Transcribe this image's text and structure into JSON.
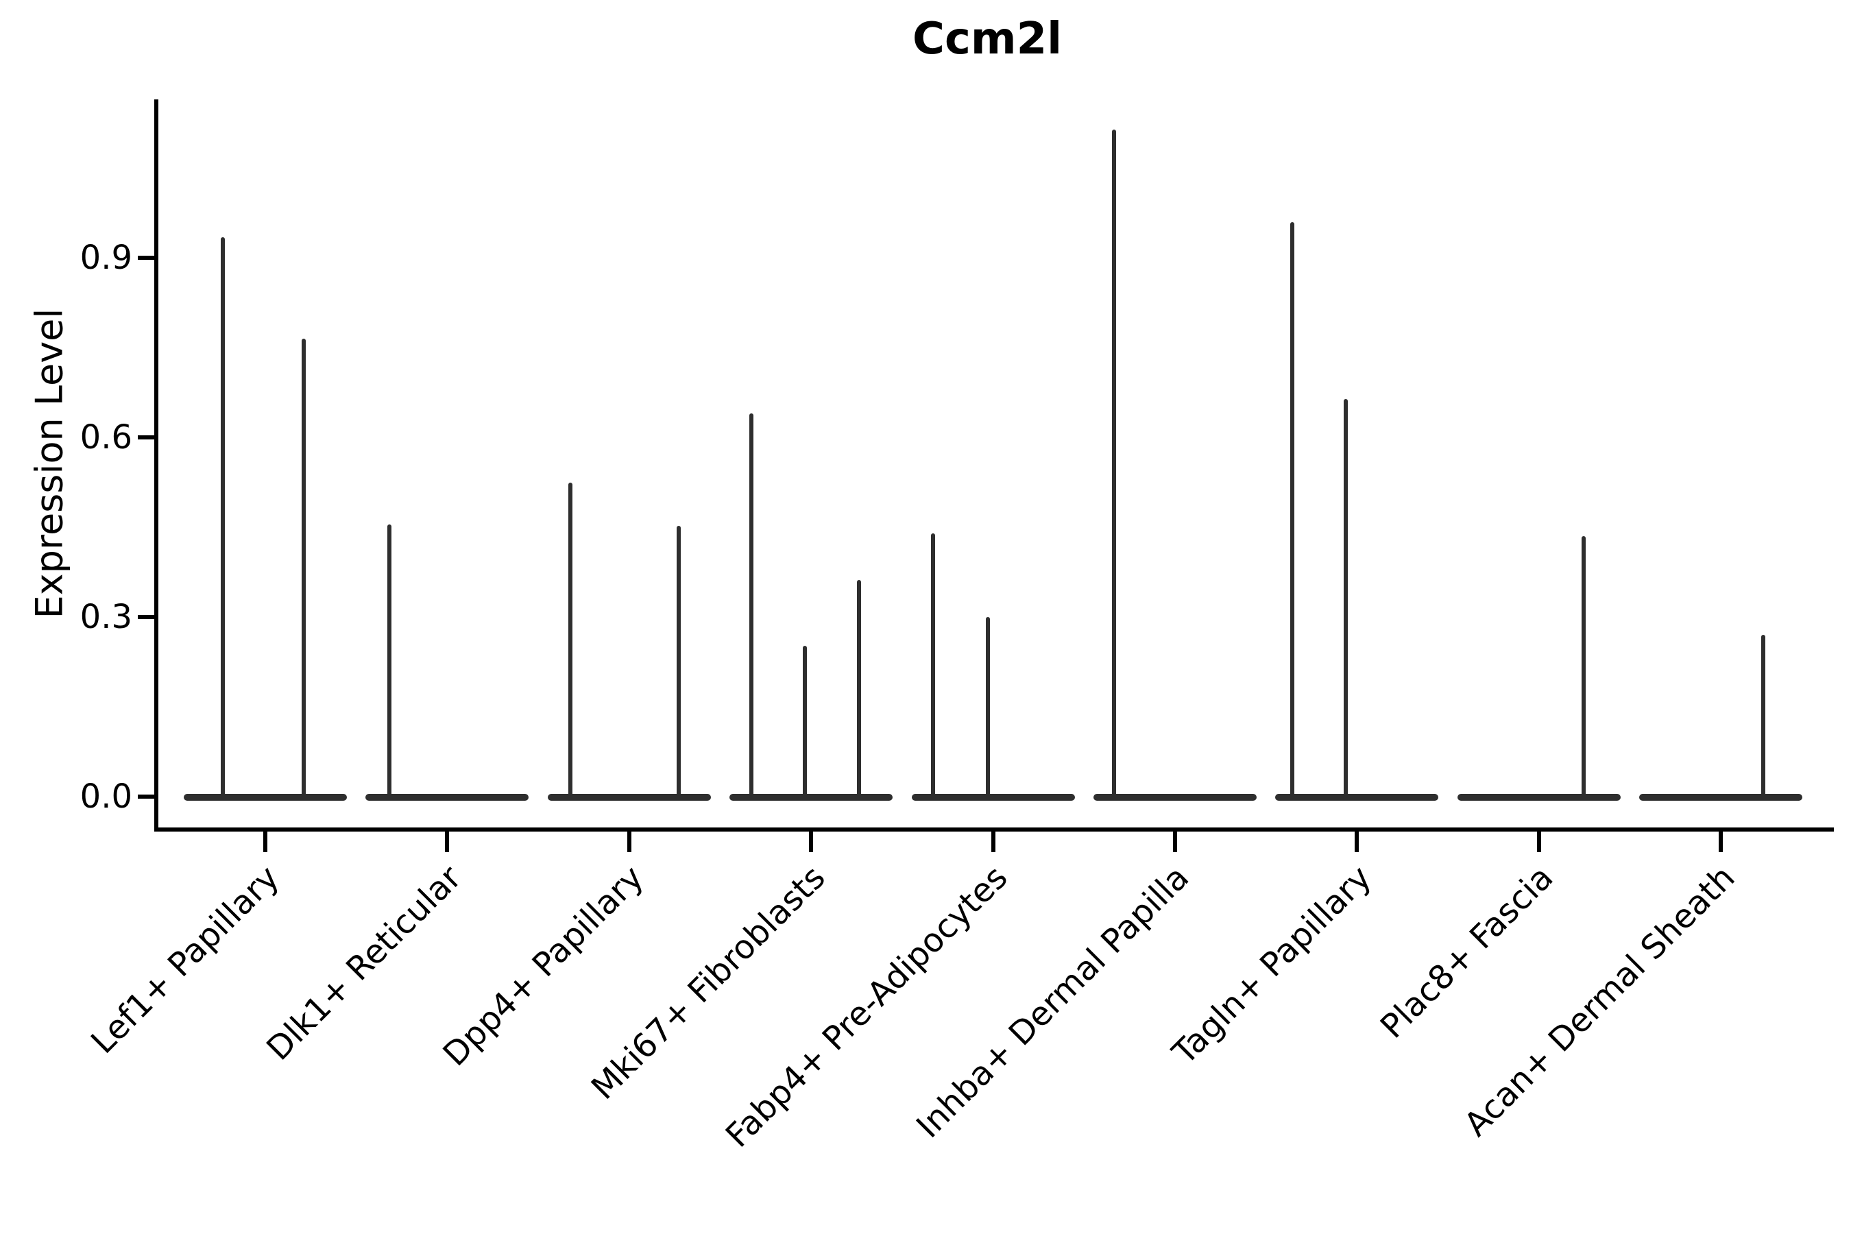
{
  "chart_data": {
    "type": "violin",
    "title": "Ccm2l",
    "xlabel": "",
    "ylabel": "Expression Level",
    "yticks": [
      "0.0",
      "0.3",
      "0.6",
      "0.9"
    ],
    "ytick_values": [
      0.0,
      0.3,
      0.6,
      0.9
    ],
    "ylim": [
      -0.05,
      1.17
    ],
    "grid": false,
    "legend": "none",
    "ink_color": "#000000",
    "violin_color": "#2e2e2e",
    "categories": [
      "Lef1+ Papillary",
      "Dlk1+ Reticular",
      "Dpp4+ Papillary",
      "Mki67+ Fibroblasts",
      "Fabp4+ Pre-Adipocytes",
      "Inhba+ Dermal Papilla",
      "Tagln+ Papillary",
      "Plac8+ Fascia",
      "Acan+ Dermal Sheath"
    ],
    "violins": [
      {
        "category": "Lef1+ Papillary",
        "max_values": [
          0.935,
          0.765
        ],
        "spike_dx": [
          -62,
          56
        ]
      },
      {
        "category": "Dlk1+ Reticular",
        "max_values": [
          0.455
        ],
        "spike_dx": [
          -84
        ]
      },
      {
        "category": "Dpp4+ Papillary",
        "max_values": [
          0.525,
          0.453
        ],
        "spike_dx": [
          -86,
          72
        ]
      },
      {
        "category": "Mki67+ Fibroblasts",
        "max_values": [
          0.64,
          0.252,
          0.362
        ],
        "spike_dx": [
          -87,
          -9,
          70
        ]
      },
      {
        "category": "Fabp4+ Pre-Adipocytes",
        "max_values": [
          0.44,
          0.3
        ],
        "spike_dx": [
          -88,
          -8
        ]
      },
      {
        "category": "Inhba+ Dermal Papilla",
        "max_values": [
          1.115
        ],
        "spike_dx": [
          -89
        ]
      },
      {
        "category": "Tagln+ Papillary",
        "max_values": [
          0.96,
          0.664
        ],
        "spike_dx": [
          -94,
          -16
        ]
      },
      {
        "category": "Plac8+ Fascia",
        "max_values": [
          0.435
        ],
        "spike_dx": [
          65
        ]
      },
      {
        "category": "Acan+ Dermal Sheath",
        "max_values": [
          0.27
        ],
        "spike_dx": [
          62
        ]
      }
    ]
  }
}
